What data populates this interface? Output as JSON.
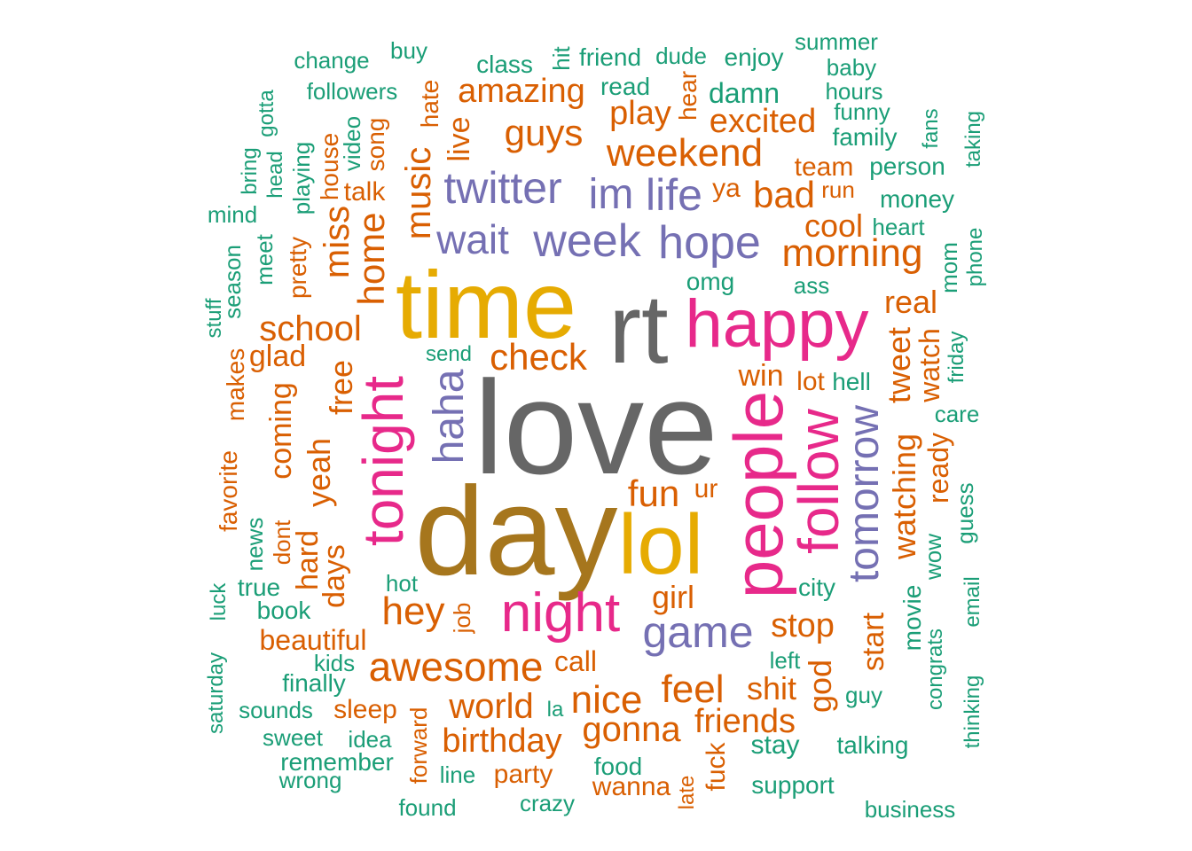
{
  "palette": {
    "g1": "#1b9e77",
    "g2": "#d95f02",
    "g3": "#7570b3",
    "g4": "#e7298a",
    "g5": "#e6ab02",
    "g6": "#a6761d",
    "g7": "#666666"
  },
  "words": {
    "love": "love",
    "rt": "rt",
    "day": "day",
    "time": "time",
    "lol": "lol",
    "happy": "happy",
    "people": "people",
    "night": "night",
    "follow": "follow",
    "tonight": "tonight",
    "game": "game",
    "hope": "hope",
    "week": "week",
    "twitter": "twitter",
    "wait": "wait",
    "im": "im",
    "life": "life",
    "haha": "haha",
    "tomorrow": "tomorrow",
    "weekend": "weekend",
    "guys": "guys",
    "amazing": "amazing",
    "play": "play",
    "excited": "excited",
    "bad": "bad",
    "morning": "morning",
    "cool": "cool",
    "check": "check",
    "school": "school",
    "home": "home",
    "miss": "miss",
    "music": "music",
    "hey": "hey",
    "awesome": "awesome",
    "nice": "nice",
    "feel": "feel",
    "world": "world",
    "birthday": "birthday",
    "gonna": "gonna",
    "friends": "friends",
    "stop": "stop",
    "shit": "shit",
    "fun": "fun",
    "girl": "girl",
    "win": "win",
    "watching": "watching",
    "tweet": "tweet",
    "watch": "watch",
    "real": "real",
    "ready": "ready",
    "start": "start",
    "god": "god",
    "free": "free",
    "glad": "glad",
    "coming": "coming",
    "yeah": "yeah",
    "days": "days",
    "hard": "hard",
    "live": "live",
    "hate": "hate",
    "house": "house",
    "song": "song",
    "talk": "talk",
    "pretty": "pretty",
    "makes": "makes",
    "favorite": "favorite",
    "dont": "dont",
    "beautiful": "beautiful",
    "sleep": "sleep",
    "call": "call",
    "party": "party",
    "wanna": "wanna",
    "fuck": "fuck",
    "lot": "lot",
    "team": "team",
    "hear": "hear",
    "ya": "ya",
    "ur": "ur",
    "job": "job",
    "forward": "forward",
    "late": "late",
    "run": "run",
    "change": "change",
    "buy": "buy",
    "class": "class",
    "hit": "hit",
    "friend": "friend",
    "dude": "dude",
    "enjoy": "enjoy",
    "summer": "summer",
    "baby": "baby",
    "hours": "hours",
    "followers": "followers",
    "read": "read",
    "damn": "damn",
    "funny": "funny",
    "family": "family",
    "fans": "fans",
    "taking": "taking",
    "gotta": "gotta",
    "video": "video",
    "head": "head",
    "bring": "bring",
    "playing": "playing",
    "person": "person",
    "money": "money",
    "heart": "heart",
    "mind": "mind",
    "meet": "meet",
    "season": "season",
    "stuff": "stuff",
    "omg": "omg",
    "ass": "ass",
    "mom": "mom",
    "phone": "phone",
    "send": "send",
    "hell": "hell",
    "friday": "friday",
    "care": "care",
    "guess": "guess",
    "wow": "wow",
    "news": "news",
    "true": "true",
    "luck": "luck",
    "book": "book",
    "hot": "hot",
    "city": "city",
    "movie": "movie",
    "email": "email",
    "kids": "kids",
    "left": "left",
    "saturday": "saturday",
    "finally": "finally",
    "sounds": "sounds",
    "guy": "guy",
    "congrats": "congrats",
    "thinking": "thinking",
    "sweet": "sweet",
    "idea": "idea",
    "la": "la",
    "remember": "remember",
    "stay": "stay",
    "talking": "talking",
    "wrong": "wrong",
    "line": "line",
    "food": "food",
    "support": "support",
    "found": "found",
    "crazy": "crazy",
    "business": "business"
  }
}
